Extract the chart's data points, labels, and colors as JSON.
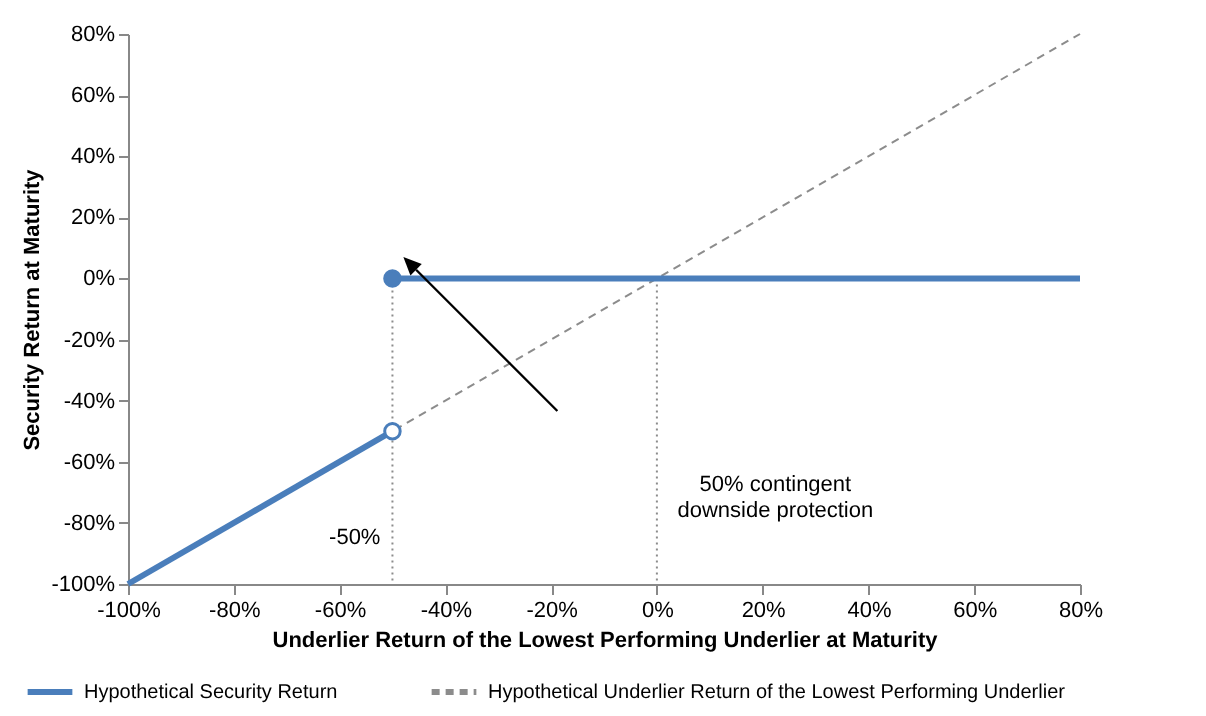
{
  "chart_data": {
    "type": "line",
    "xlabel": "Underlier Return of the Lowest Performing Underlier at Maturity",
    "ylabel": "Security Return at Maturity",
    "xlim": [
      -100,
      80
    ],
    "xticks": [
      {
        "value": -100,
        "label": "-100%"
      },
      {
        "value": -80,
        "label": "-80%"
      },
      {
        "value": -60,
        "label": "-60%"
      },
      {
        "value": -40,
        "label": "-40%"
      },
      {
        "value": -20,
        "label": "-20%"
      },
      {
        "value": 0,
        "label": "0%"
      },
      {
        "value": 20,
        "label": "20%"
      },
      {
        "value": 40,
        "label": "40%"
      },
      {
        "value": 60,
        "label": "60%"
      },
      {
        "value": 80,
        "label": "80%"
      }
    ],
    "ylim": [
      -100,
      80
    ],
    "yticks": [
      {
        "value": -100,
        "label": "-100%"
      },
      {
        "value": -80,
        "label": "-80%"
      },
      {
        "value": -60,
        "label": "-60%"
      },
      {
        "value": -40,
        "label": "-40%"
      },
      {
        "value": -20,
        "label": "-20%"
      },
      {
        "value": 0,
        "label": "0%"
      },
      {
        "value": 20,
        "label": "20%"
      },
      {
        "value": 40,
        "label": "40%"
      },
      {
        "value": 60,
        "label": "60%"
      },
      {
        "value": 80,
        "label": "80%"
      }
    ],
    "grid": false,
    "legend": "bottom",
    "series": [
      {
        "name": "Hypothetical Security Return",
        "color": "#4a7ebb",
        "line_style": "solid",
        "x": [
          -100,
          -50
        ],
        "values": [
          -100,
          -50
        ]
      },
      {
        "color": "#4a7ebb",
        "line_style": "solid",
        "x": [
          -50,
          80
        ],
        "values": [
          0,
          0
        ]
      },
      {
        "name": "Hypothetical Underlier Return of the Lowest Performing Underlier",
        "color": "#8c8c8c",
        "line_style": "dashed",
        "x": [
          -100,
          80
        ],
        "values": [
          -100,
          80
        ]
      },
      {
        "color": "#8c8c8c",
        "line_style": "dotted",
        "x": [
          -50,
          -50
        ],
        "values": [
          -100,
          0
        ]
      },
      {
        "color": "#8c8c8c",
        "line_style": "dotted",
        "x": [
          0,
          0
        ],
        "values": [
          -100,
          0
        ]
      },
      {
        "type": "scatter",
        "marker": "circle",
        "color": "#4a7ebb",
        "colors": [
          "#ffffff",
          "#4a7ebb"
        ],
        "x": [
          -50,
          -50
        ],
        "values": [
          -50,
          0
        ]
      }
    ],
    "annotations": [
      {
        "text": "-50%",
        "x": -50,
        "y": -85
      },
      "50% contingent\ndownside protection"
    ]
  }
}
